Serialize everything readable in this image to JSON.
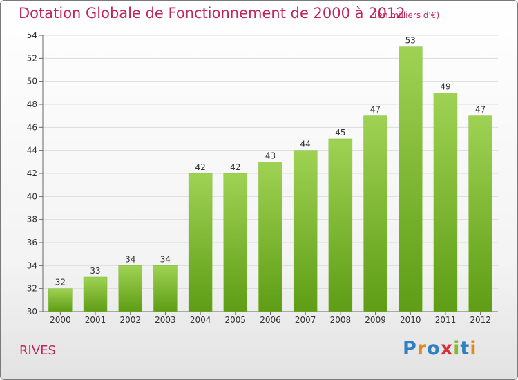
{
  "header": {
    "title": "Dotation Globale de Fonctionnement de 2000 à 2012",
    "subtitle": "(en milliers d'€)"
  },
  "footer": {
    "commune": "RIVES",
    "logo_text": "Proxiti"
  },
  "colors": {
    "title": "#c0245c",
    "bar_light": "#9fd253",
    "bar_dark": "#5e9d15"
  },
  "chart_data": {
    "type": "bar",
    "title": "Dotation Globale de Fonctionnement de 2000 à 2012",
    "subtitle": "(en milliers d'€)",
    "categories": [
      "2000",
      "2001",
      "2002",
      "2003",
      "2004",
      "2005",
      "2006",
      "2007",
      "2008",
      "2009",
      "2010",
      "2011",
      "2012"
    ],
    "values": [
      32,
      33,
      34,
      34,
      42,
      42,
      43,
      44,
      45,
      47,
      53,
      49,
      47
    ],
    "ylim": [
      30,
      54
    ],
    "yticks": [
      30,
      32,
      34,
      36,
      38,
      40,
      42,
      44,
      46,
      48,
      50,
      52,
      54
    ],
    "grid": true,
    "xlabel": "",
    "ylabel": ""
  }
}
